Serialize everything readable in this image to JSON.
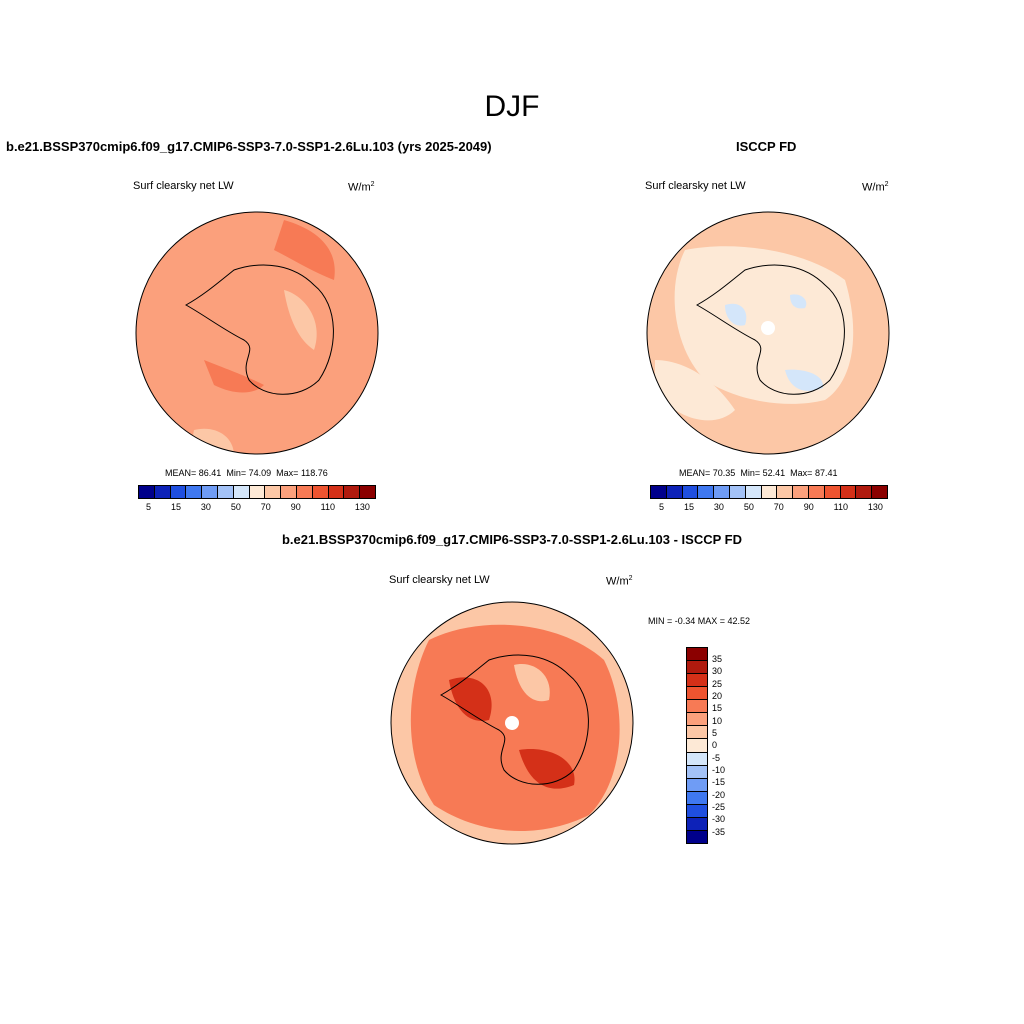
{
  "season": "DJF",
  "panels": [
    {
      "title": "b.e21.BSSP370cmip6.f09_g17.CMIP6-SSP3-7.0-SSP1-2.6Lu.103 (yrs 2025-2049)",
      "variable": "Surf clearsky net LW",
      "units_base": "W/m",
      "units_exp": "2",
      "stats": {
        "mean_label": "MEAN=",
        "mean": "86.41",
        "min_label": "Min=",
        "min": "74.09",
        "max_label": "Max=",
        "max": "118.76"
      },
      "colorbar_ticks": [
        "5",
        "15",
        "30",
        "50",
        "70",
        "90",
        "110",
        "130"
      ]
    },
    {
      "title": "ISCCP FD",
      "variable": "Surf clearsky net LW",
      "units_base": "W/m",
      "units_exp": "2",
      "stats": {
        "mean_label": "MEAN=",
        "mean": "70.35",
        "min_label": "Min=",
        "min": "52.41",
        "max_label": "Max=",
        "max": "87.41"
      },
      "colorbar_ticks": [
        "5",
        "15",
        "30",
        "50",
        "70",
        "90",
        "110",
        "130"
      ]
    },
    {
      "title": "b.e21.BSSP370cmip6.f09_g17.CMIP6-SSP3-7.0-SSP1-2.6Lu.103 - ISCCP FD",
      "variable": "Surf clearsky net LW",
      "units_base": "W/m",
      "units_exp": "2",
      "minmax": "MIN =  -0.34 MAX =  42.52",
      "colorbar_ticks": [
        "35",
        "30",
        "25",
        "20",
        "15",
        "10",
        "5",
        "0",
        "-5",
        "-10",
        "-15",
        "-20",
        "-25",
        "-30",
        "-35"
      ]
    }
  ],
  "colors": {
    "abs_scale": [
      "#00008b",
      "#0d22b8",
      "#1f4fe0",
      "#3f78f0",
      "#6f9cf5",
      "#a3c2f7",
      "#d4e6fa",
      "#fde9d6",
      "#fcc7a6",
      "#fba07c",
      "#f77a55",
      "#ee5430",
      "#d43018",
      "#b01a0e",
      "#8b0000"
    ],
    "diff_scale": [
      "#8b0000",
      "#b01a0e",
      "#d43018",
      "#ee5430",
      "#f77a55",
      "#fba07c",
      "#fcc7a6",
      "#fde9d6",
      "#d4e6fa",
      "#a3c2f7",
      "#6f9cf5",
      "#3f78f0",
      "#1f4fe0",
      "#0d22b8",
      "#00008b"
    ],
    "panel1_base": "#fba07c",
    "panel1_dark": "#f77a55",
    "panel1_light": "#fcc7a6",
    "panel2_base": "#fcc7a6",
    "panel2_light": "#fde9d6",
    "panel2_blue": "#d4e6fa",
    "panel3_base": "#f77a55",
    "panel3_light": "#fcc7a6",
    "panel3_dark": "#d43018"
  }
}
